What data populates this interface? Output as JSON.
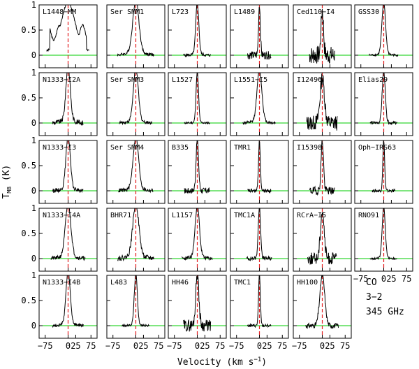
{
  "chart_data": {
    "type": "line",
    "xlabel": "Velocity (km s",
    "xlabel_sup": "−1",
    "xlabel_close": ")",
    "ylabel_main": "T",
    "ylabel_sub": "MB",
    "ylabel_unit": " (K)",
    "xlim": [
      -95,
      95
    ],
    "ylim": [
      -0.25,
      1.0
    ],
    "xticks": [
      "−75",
      "0",
      "25",
      "75"
    ],
    "xtick_values": [
      -75,
      0,
      25,
      75
    ],
    "yticks": [
      "1",
      "0.5",
      "0"
    ],
    "ytick_values": [
      1,
      0.5,
      0
    ],
    "baseline_color": "#00cc00",
    "systemic_line_color": "#e41a1c",
    "spectrum_color": "#000000",
    "grid": false,
    "panels": [
      {
        "name": "L1448−MM",
        "width": 22,
        "peak": 0.75,
        "wings": 0.35,
        "noise": 0.02,
        "truncated": false
      },
      {
        "name": "Ser SMM1",
        "width": 10,
        "peak": 1.0,
        "wings": 0.12,
        "noise": 0.03,
        "truncated": true
      },
      {
        "name": "L723",
        "width": 5,
        "peak": 1.0,
        "wings": 0.05,
        "noise": 0.03,
        "truncated": true
      },
      {
        "name": "L1489",
        "width": 3,
        "peak": 1.0,
        "wings": 0.0,
        "noise": 0.08,
        "truncated": true
      },
      {
        "name": "Ced110−I4",
        "width": 4,
        "peak": 0.9,
        "wings": 0.0,
        "noise": 0.18,
        "truncated": false
      },
      {
        "name": "GSS30",
        "width": 6,
        "peak": 1.0,
        "wings": 0.05,
        "noise": 0.02,
        "truncated": true
      },
      {
        "name": "N1333−I2A",
        "width": 7,
        "peak": 1.0,
        "wings": 0.15,
        "noise": 0.05,
        "truncated": true
      },
      {
        "name": "Ser SMM3",
        "width": 8,
        "peak": 1.0,
        "wings": 0.1,
        "noise": 0.03,
        "truncated": true
      },
      {
        "name": "L1527",
        "width": 4,
        "peak": 1.0,
        "wings": 0.03,
        "noise": 0.02,
        "truncated": true
      },
      {
        "name": "L1551−I5",
        "width": 8,
        "peak": 1.0,
        "wings": 0.06,
        "noise": 0.03,
        "truncated": true
      },
      {
        "name": "I12496",
        "width": 7,
        "peak": 0.9,
        "wings": 0.0,
        "noise": 0.15,
        "truncated": false
      },
      {
        "name": "Elias29",
        "width": 5,
        "peak": 1.0,
        "wings": 0.03,
        "noise": 0.03,
        "truncated": true
      },
      {
        "name": "N1333−I3",
        "width": 7,
        "peak": 1.0,
        "wings": 0.12,
        "noise": 0.04,
        "truncated": true
      },
      {
        "name": "Ser SMM4",
        "width": 9,
        "peak": 1.0,
        "wings": 0.08,
        "noise": 0.04,
        "truncated": true
      },
      {
        "name": "B335",
        "width": 4,
        "peak": 1.0,
        "wings": 0.03,
        "noise": 0.06,
        "truncated": true
      },
      {
        "name": "TMR1",
        "width": 3,
        "peak": 1.0,
        "wings": 0.0,
        "noise": 0.04,
        "truncated": true
      },
      {
        "name": "I15398",
        "width": 4,
        "peak": 1.0,
        "wings": 0.0,
        "noise": 0.08,
        "truncated": true
      },
      {
        "name": "Oph−IRS63",
        "width": 3,
        "peak": 1.0,
        "wings": 0.0,
        "noise": 0.03,
        "truncated": true
      },
      {
        "name": "N1333−I4A",
        "width": 9,
        "peak": 1.0,
        "wings": 0.1,
        "noise": 0.04,
        "truncated": true
      },
      {
        "name": "BHR71",
        "width": 10,
        "peak": 1.0,
        "wings": 0.1,
        "noise": 0.05,
        "truncated": true
      },
      {
        "name": "L1157",
        "width": 7,
        "peak": 1.0,
        "wings": 0.08,
        "noise": 0.04,
        "truncated": true
      },
      {
        "name": "TMC1A",
        "width": 4,
        "peak": 1.0,
        "wings": 0.02,
        "noise": 0.04,
        "truncated": true
      },
      {
        "name": "RCrA−I5",
        "width": 6,
        "peak": 0.95,
        "wings": 0.0,
        "noise": 0.12,
        "truncated": false
      },
      {
        "name": "RNO91",
        "width": 5,
        "peak": 1.0,
        "wings": 0.03,
        "noise": 0.02,
        "truncated": true
      },
      {
        "name": "N1333−I4B",
        "width": 7,
        "peak": 1.0,
        "wings": 0.08,
        "noise": 0.03,
        "truncated": true
      },
      {
        "name": "L483",
        "width": 5,
        "peak": 1.0,
        "wings": 0.04,
        "noise": 0.02,
        "truncated": true
      },
      {
        "name": "HH46",
        "width": 5,
        "peak": 1.0,
        "wings": 0.05,
        "noise": 0.12,
        "truncated": true
      },
      {
        "name": "TMC1",
        "width": 3,
        "peak": 1.0,
        "wings": 0.0,
        "noise": 0.03,
        "truncated": true
      },
      {
        "name": "HH100",
        "width": 8,
        "peak": 1.0,
        "wings": 0.0,
        "noise": 0.05,
        "truncated": true
      }
    ],
    "annotation": [
      "CO",
      "3−2",
      "345 GHz"
    ]
  }
}
